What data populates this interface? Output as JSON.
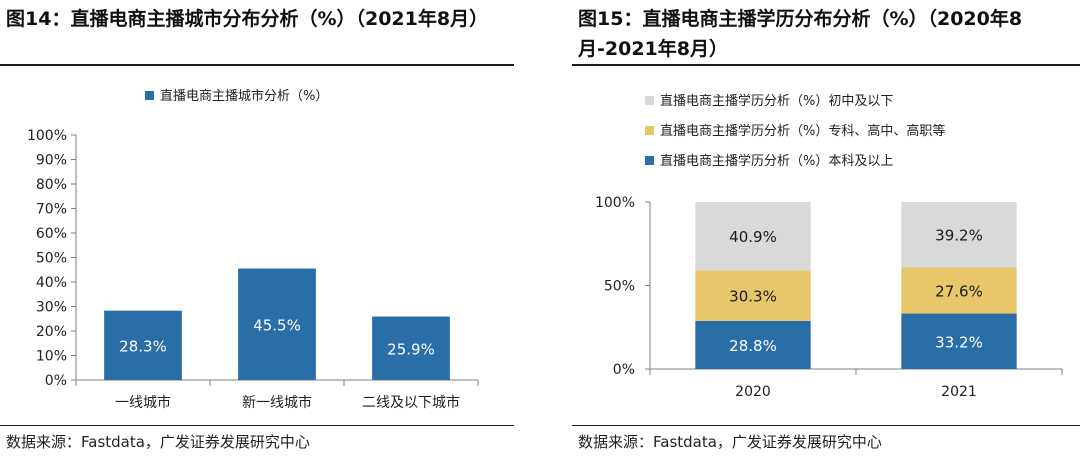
{
  "chart_data": [
    {
      "type": "bar",
      "title": "图14：直播电商主播城市分布分析（%）（2021年8月）",
      "legend": [
        "直播电商主播城市分析（%）"
      ],
      "legend_position": "top-center",
      "categories": [
        "一线城市",
        "新一线城市",
        "二线及以下城市"
      ],
      "values": [
        28.3,
        45.5,
        25.9
      ],
      "value_labels": [
        "28.3%",
        "45.5%",
        "25.9%"
      ],
      "ylim": [
        0,
        100
      ],
      "yticks": [
        "0%",
        "10%",
        "20%",
        "30%",
        "40%",
        "50%",
        "60%",
        "70%",
        "80%",
        "90%",
        "100%"
      ],
      "xlabel": "",
      "ylabel": "",
      "grid": false,
      "source": "数据来源：Fastdata，广发证券发展研究中心",
      "colors": {
        "bar": "#2a6ea8",
        "label": "#ffffff",
        "axis": "#7f7f7f"
      }
    },
    {
      "type": "bar",
      "stacked": true,
      "percent": true,
      "title": "图15：直播电商主播学历分布分析（%）（2020年8月-2021年8月）",
      "legend_position": "top-left",
      "categories": [
        "2020",
        "2021"
      ],
      "series": [
        {
          "name": "直播电商主播学历分析（%）本科及以上",
          "values": [
            28.8,
            33.2
          ],
          "labels": [
            "28.8%",
            "33.2%"
          ],
          "color": "#2a6ea8",
          "label_color": "#ffffff"
        },
        {
          "name": "直播电商主播学历分析（%）专科、高中、高职等",
          "values": [
            30.3,
            27.6
          ],
          "labels": [
            "30.3%",
            "27.6%"
          ],
          "color": "#e8c66a",
          "label_color": "#1a1a1a"
        },
        {
          "name": "直播电商主播学历分析（%）初中及以下",
          "values": [
            40.9,
            39.2
          ],
          "labels": [
            "40.9%",
            "39.2%"
          ],
          "color": "#d9d9d9",
          "label_color": "#1a1a1a"
        }
      ],
      "ylim": [
        0,
        100
      ],
      "yticks": [
        "0%",
        "50%",
        "100%"
      ],
      "xlabel": "",
      "ylabel": "",
      "grid": false,
      "source": "数据来源：Fastdata，广发证券发展研究中心",
      "colors": {
        "axis": "#7f7f7f"
      }
    }
  ]
}
